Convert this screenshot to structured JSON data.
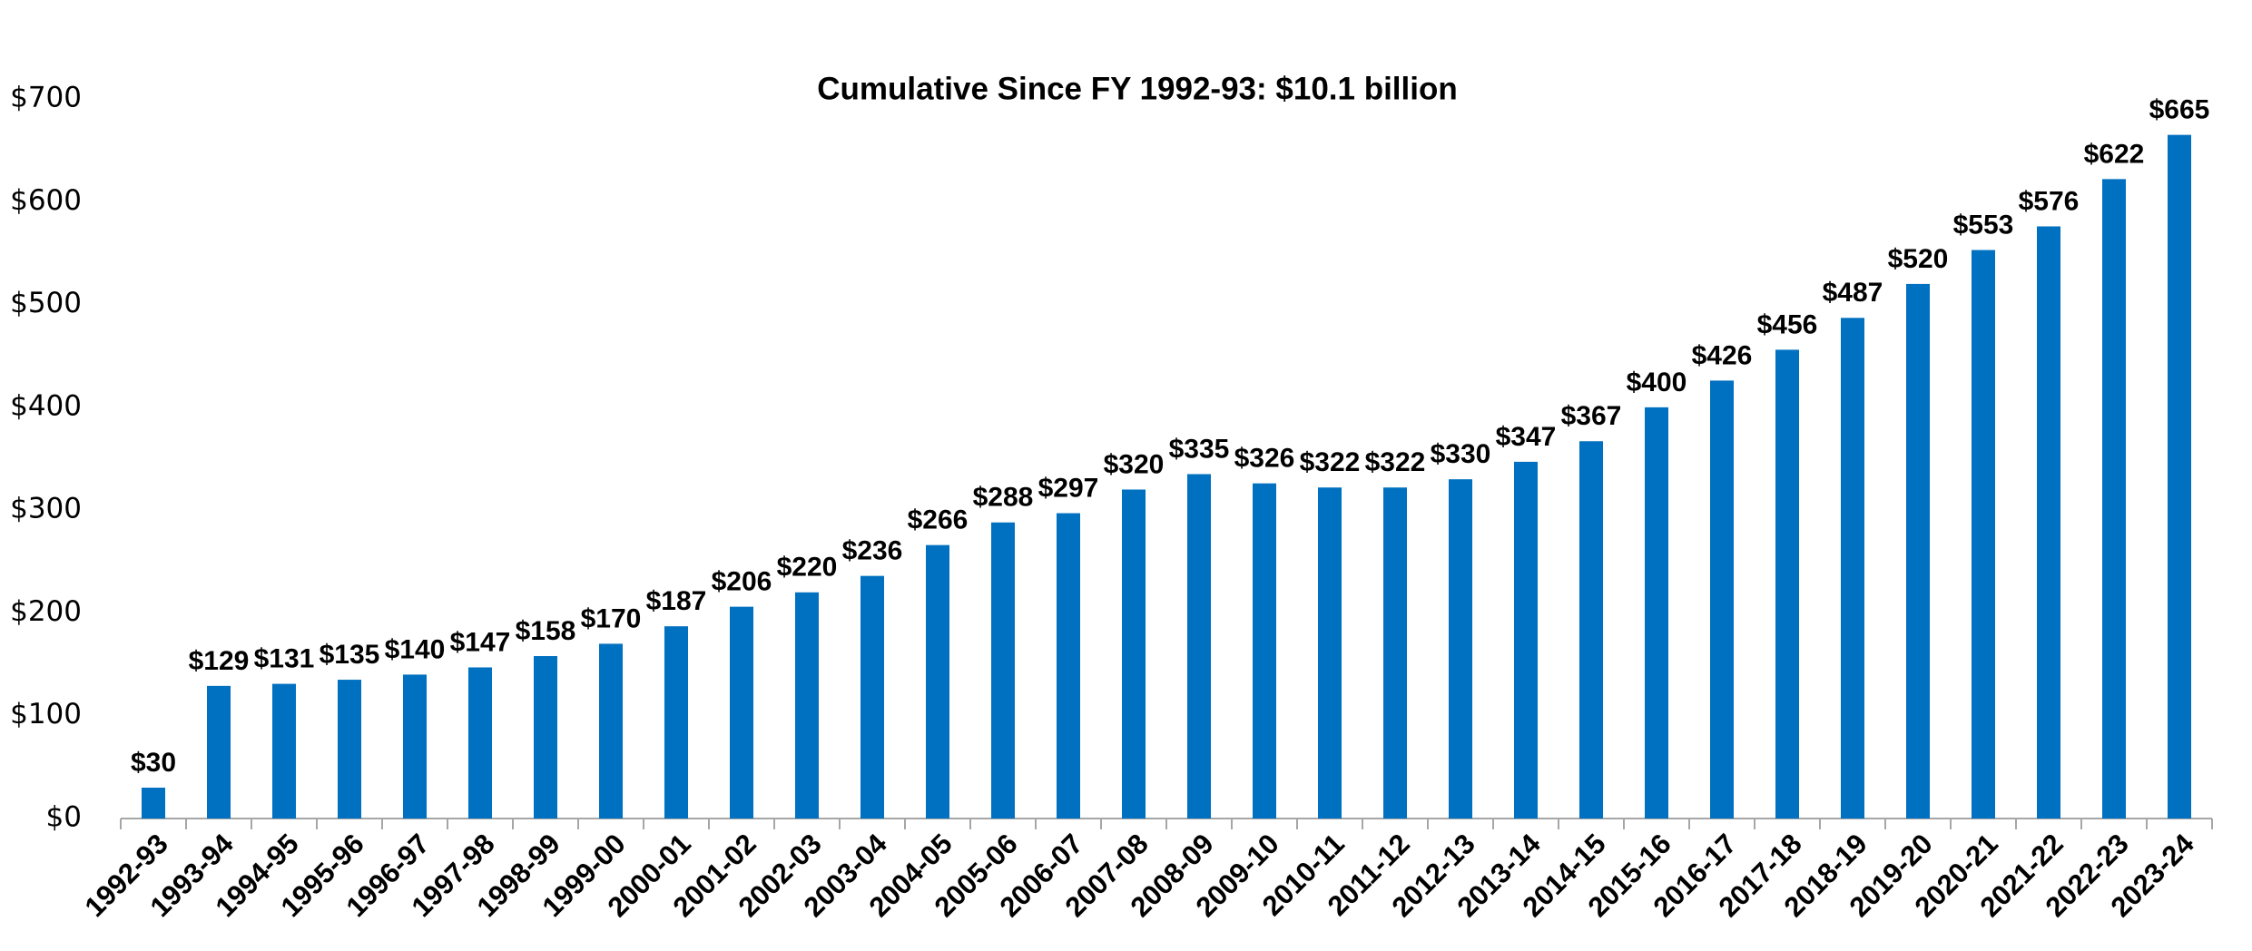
{
  "chart_data": {
    "type": "bar",
    "title": "Cumulative Since FY 1992-93: $10.1 billion",
    "categories": [
      "1992-93",
      "1993-94",
      "1994-95",
      "1995-96",
      "1996-97",
      "1997-98",
      "1998-99",
      "1999-00",
      "2000-01",
      "2001-02",
      "2002-03",
      "2003-04",
      "2004-05",
      "2005-06",
      "2006-07",
      "2007-08",
      "2008-09",
      "2009-10",
      "2010-11",
      "2011-12",
      "2012-13",
      "2013-14",
      "2014-15",
      "2015-16",
      "2016-17",
      "2017-18",
      "2018-19",
      "2019-20",
      "2020-21",
      "2021-22",
      "2022-23",
      "2023-24"
    ],
    "values": [
      30,
      129,
      131,
      135,
      140,
      147,
      158,
      170,
      187,
      206,
      220,
      236,
      266,
      288,
      297,
      320,
      335,
      326,
      322,
      322,
      330,
      347,
      367,
      400,
      426,
      456,
      487,
      520,
      553,
      576,
      622,
      665
    ],
    "value_labels": [
      "$30",
      "$129",
      "$131",
      "$135",
      "$140",
      "$147",
      "$158",
      "$170",
      "$187",
      "$206",
      "$220",
      "$236",
      "$266",
      "$288",
      "$297",
      "$320",
      "$335",
      "$326",
      "$322",
      "$322",
      "$330",
      "$347",
      "$367",
      "$400",
      "$426",
      "$456",
      "$487",
      "$520",
      "$553",
      "$576",
      "$622",
      "$665"
    ],
    "color": "#0070c0",
    "ylim": [
      0,
      700
    ],
    "yticks": [
      {
        "value": 0,
        "label": "$0"
      },
      {
        "value": 100,
        "label": "$100"
      },
      {
        "value": 200,
        "label": "$200"
      },
      {
        "value": 300,
        "label": "$300"
      },
      {
        "value": 400,
        "label": "$400"
      },
      {
        "value": 500,
        "label": "$500"
      },
      {
        "value": 600,
        "label": "$600"
      },
      {
        "value": 700,
        "label": "$700"
      }
    ],
    "grid": false
  }
}
